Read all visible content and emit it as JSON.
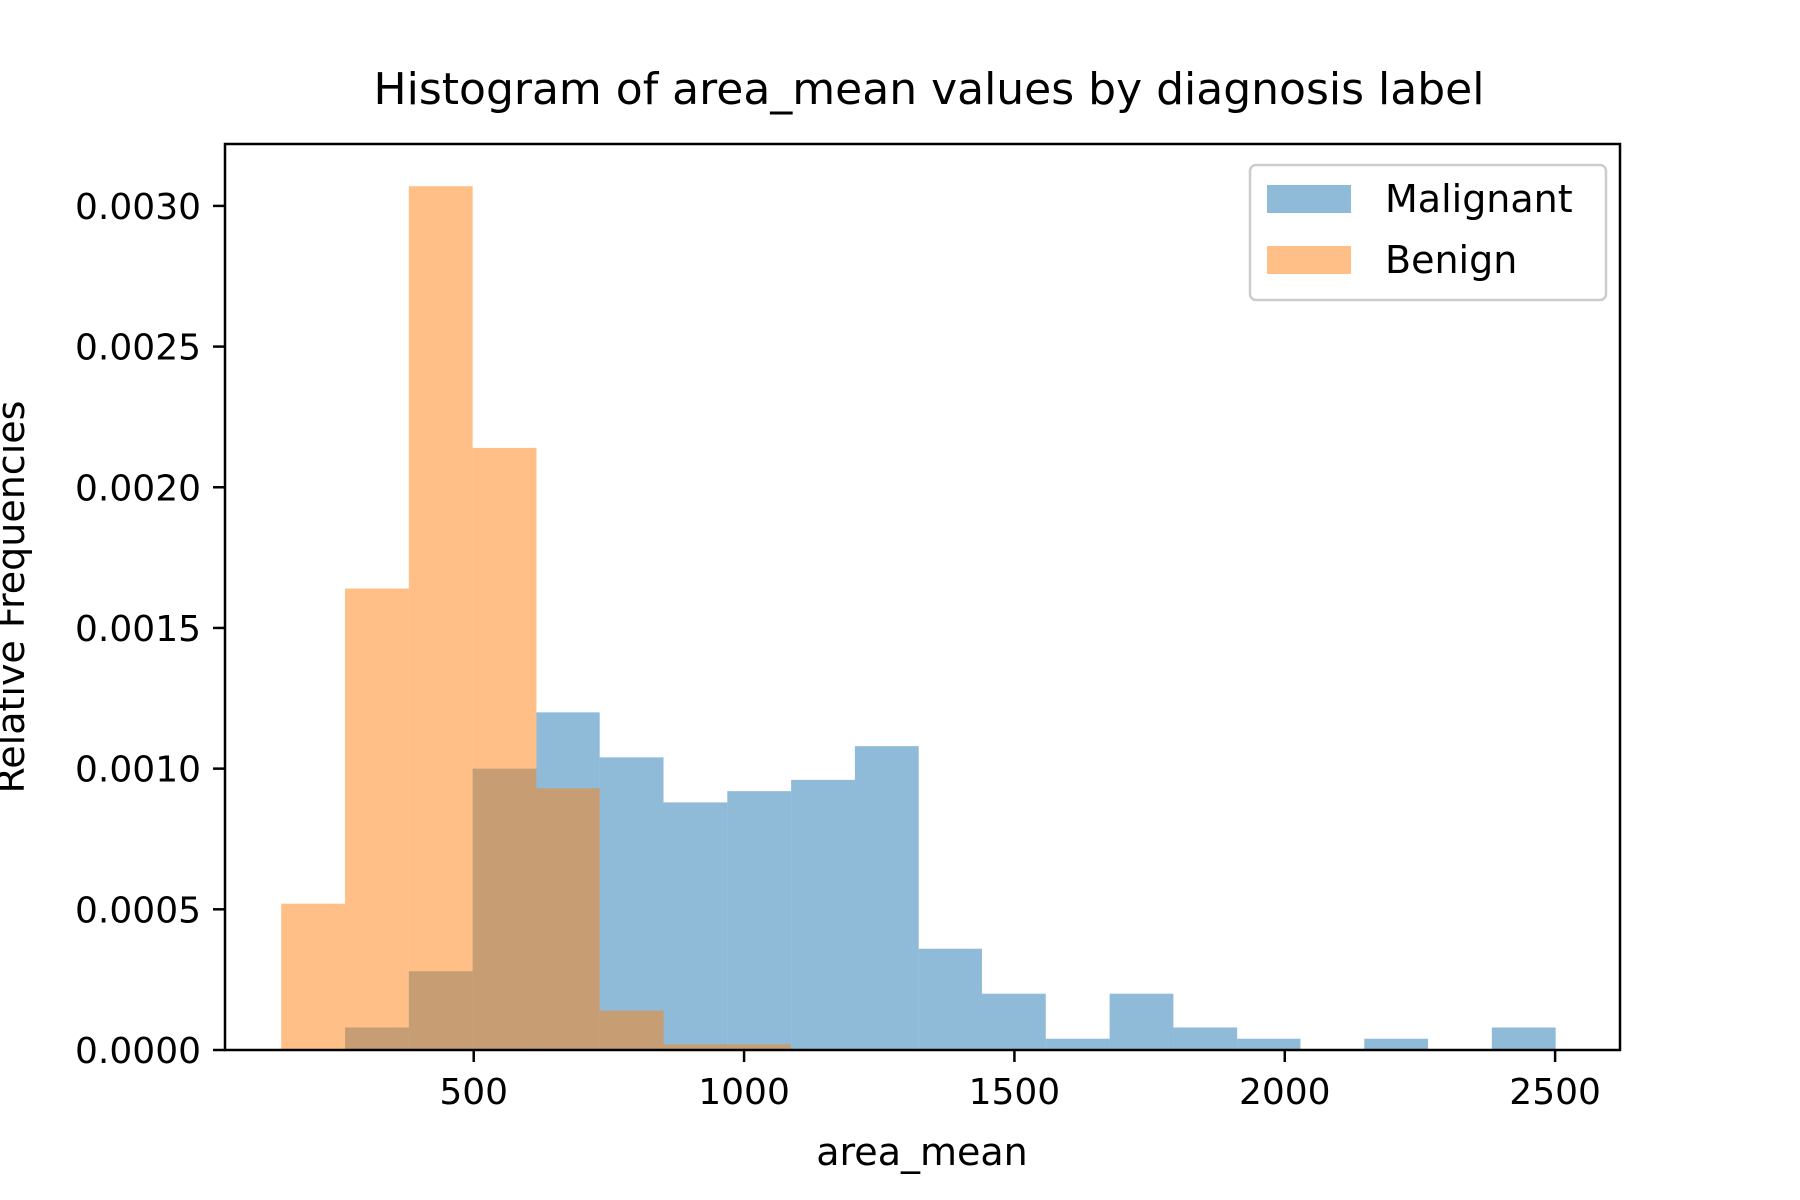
{
  "chart_data": {
    "type": "bar",
    "title": "Histogram of area_mean values by diagnosis label",
    "xlabel": "area_mean",
    "ylabel": "Relative Frequencies",
    "xlim": [
      40,
      2620
    ],
    "ylim": [
      0,
      0.00322
    ],
    "xticks": [
      500,
      1000,
      1500,
      2000,
      2500
    ],
    "xtick_labels": [
      "500",
      "1000",
      "1500",
      "2000",
      "2500"
    ],
    "yticks": [
      0,
      0.0005,
      0.001,
      0.0015,
      0.002,
      0.0025,
      0.003
    ],
    "ytick_labels": [
      "0.0000",
      "0.0005",
      "0.0010",
      "0.0015",
      "0.0020",
      "0.0025",
      "0.0030"
    ],
    "legend_position": "upper-right",
    "grid": false,
    "series": [
      {
        "name": "Malignant",
        "color": "#1f77b4",
        "alpha": 0.5,
        "bin_edges": [
          262,
          380,
          498,
          616,
          733,
          851,
          969,
          1087,
          1205,
          1323,
          1440,
          1558,
          1676,
          1794,
          1912,
          2029,
          2147,
          2265,
          2383,
          2501
        ],
        "values": [
          8e-05,
          0.00028,
          0.001,
          0.0012,
          0.00104,
          0.00088,
          0.00092,
          0.00096,
          0.00108,
          0.00036,
          0.0002,
          4e-05,
          0.0002,
          8e-05,
          4e-05,
          0.0,
          4e-05,
          0.0,
          8e-05
        ]
      },
      {
        "name": "Benign",
        "color": "#ff7f0e",
        "alpha": 0.5,
        "bin_edges": [
          144,
          262,
          380,
          498,
          616,
          733,
          851,
          969,
          1087
        ],
        "values": [
          0.00052,
          0.00164,
          0.00307,
          0.00214,
          0.00093,
          0.00014,
          2e-05,
          2e-05
        ]
      }
    ]
  }
}
